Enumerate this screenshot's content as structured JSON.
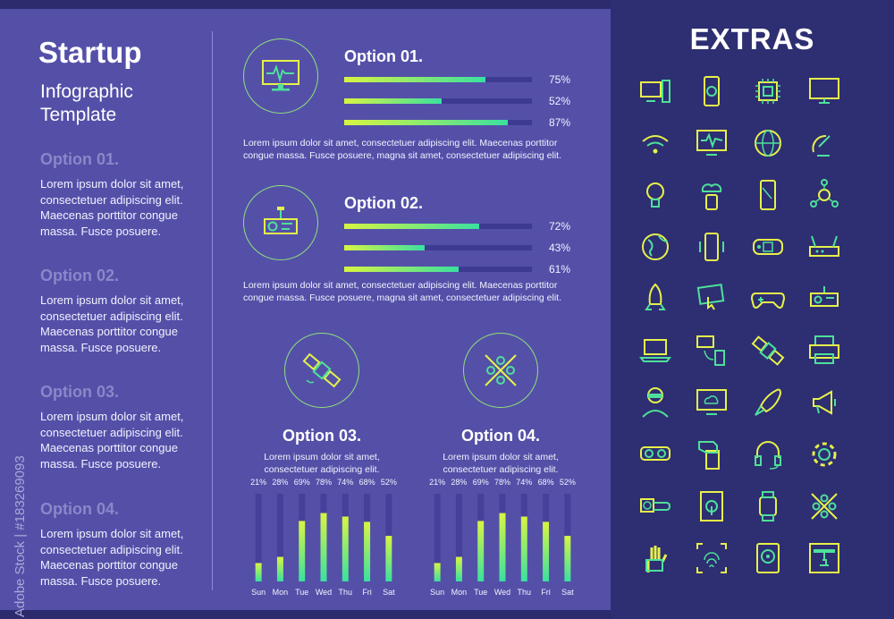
{
  "left": {
    "title": "Startup",
    "subtitle": "Infographic Template",
    "options": [
      {
        "heading": "Option 01.",
        "text": "Lorem ipsum dolor sit amet, consectetuer adipiscing elit. Maecenas porttitor congue massa. Fusce posuere."
      },
      {
        "heading": "Option 02.",
        "text": "Lorem ipsum dolor sit amet, consectetuer adipiscing elit. Maecenas porttitor congue massa. Fusce posuere."
      },
      {
        "heading": "Option 03.",
        "text": "Lorem ipsum dolor sit amet, consectetuer adipiscing elit. Maecenas porttitor congue massa. Fusce posuere."
      },
      {
        "heading": "Option 04.",
        "text": "Lorem ipsum dolor sit amet, consectetuer adipiscing elit. Maecenas porttitor congue massa. Fusce posuere."
      }
    ]
  },
  "option1": {
    "title": "Option 01.",
    "icon": "monitor-pulse-icon",
    "bars": [
      {
        "label": "75%",
        "value": 0.75
      },
      {
        "label": "52%",
        "value": 0.52
      },
      {
        "label": "87%",
        "value": 0.87
      }
    ],
    "text": "Lorem ipsum dolor sit amet, consectetuer adipiscing elit. Maecenas porttitor congue massa. Fusce posuere, magna sit amet, consectetuer adipiscing elit."
  },
  "option2": {
    "title": "Option 02.",
    "icon": "projector-icon",
    "bars": [
      {
        "label": "72%",
        "value": 0.72
      },
      {
        "label": "43%",
        "value": 0.43
      },
      {
        "label": "61%",
        "value": 0.61
      }
    ],
    "text": "Lorem ipsum dolor sit amet, consectetuer adipiscing elit. Maecenas porttitor congue massa. Fusce posuere, magna sit amet, consectetuer adipiscing elit."
  },
  "option3": {
    "title": "Option 03.",
    "icon": "satellite-icon",
    "text": "Lorem ipsum dolor sit amet, consectetuer adipiscing elit."
  },
  "option4": {
    "title": "Option 04.",
    "icon": "network-nodes-icon",
    "text": "Lorem ipsum dolor sit amet, consectetuer adipiscing elit."
  },
  "chart_data": [
    {
      "type": "bar",
      "categories": [
        "Sun",
        "Mon",
        "Tue",
        "Wed",
        "Thu",
        "Fri",
        "Sat"
      ],
      "values": [
        21,
        28,
        69,
        78,
        74,
        68,
        52
      ],
      "value_labels": [
        "21%",
        "28%",
        "69%",
        "78%",
        "74%",
        "68%",
        "52%"
      ],
      "ylim": [
        0,
        100
      ]
    },
    {
      "type": "bar",
      "categories": [
        "Sun",
        "Mon",
        "Tue",
        "Wed",
        "Thu",
        "Fri",
        "Sat"
      ],
      "values": [
        21,
        28,
        69,
        78,
        74,
        68,
        52
      ],
      "value_labels": [
        "21%",
        "28%",
        "69%",
        "78%",
        "74%",
        "68%",
        "52%"
      ],
      "ylim": [
        0,
        100
      ]
    }
  ],
  "extras": {
    "title": "EXTRAS",
    "icons": [
      "desktop-computer-icon",
      "fingerprint-phone-icon",
      "cpu-chip-icon",
      "monitor-icon",
      "wifi-icon",
      "monitor-pulse-icon",
      "globe-www-icon",
      "satellite-dish-icon",
      "lightbulb-icon",
      "cloud-phone-icon",
      "smartphone-icon",
      "molecule-icon",
      "earth-icon",
      "vibrating-phone-icon",
      "handheld-console-icon",
      "router-icon",
      "rocket-icon",
      "touch-screen-icon",
      "gamepad-icon",
      "projector-icon",
      "laptop-icon",
      "device-sync-icon",
      "satellite-icon",
      "printer-icon",
      "vr-headset-user-icon",
      "cloud-monitor-icon",
      "rocket-launch-icon",
      "megaphone-icon",
      "vr-goggles-icon",
      "hand-phone-icon",
      "headset-icon",
      "gear-icon",
      "smartwatch-hand-icon",
      "tablet-touch-icon",
      "smartwatch-icon",
      "network-nodes-icon",
      "robot-hand-icon",
      "fingerprint-scan-icon",
      "hard-drive-icon",
      "3d-printer-icon"
    ]
  },
  "watermark": "Adobe Stock | #183269093",
  "colors": {
    "accent_start": "#d8f542",
    "accent_end": "#3ae0a0",
    "panel": "#5450a8",
    "background": "#2b2b6e"
  }
}
